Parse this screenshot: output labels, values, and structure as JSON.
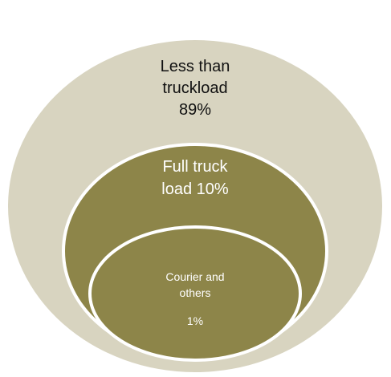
{
  "diagram": {
    "type": "nested-circles",
    "colors": {
      "outer": "#d8d4c0",
      "middle": "#8d8549",
      "inner": "#8d8549",
      "ring": "#ffffff"
    },
    "segments": [
      {
        "lines": [
          "Less than",
          "truckload",
          "89%"
        ],
        "value": 89
      },
      {
        "lines": [
          "Full truck",
          "load 10%"
        ],
        "value": 10
      },
      {
        "lines": [
          "Courier and",
          "others",
          "1%"
        ],
        "value": 1
      }
    ]
  }
}
